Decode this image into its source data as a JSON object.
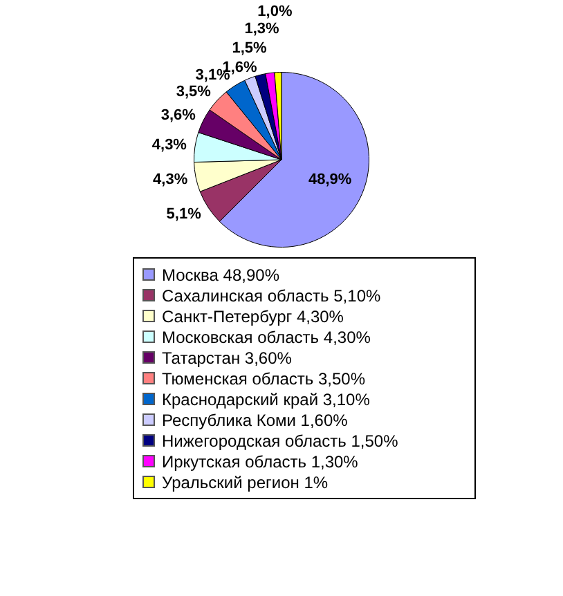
{
  "chart_data": {
    "type": "pie",
    "categories": [
      "Москва  48,90%",
      "Сахалинская область  5,10%",
      "Санкт-Петербург 4,30%",
      "Московская область  4,30%",
      "Татарстан  3,60%",
      "Тюменская область  3,50%",
      "Краснодарский край 3,10%",
      "Республика Коми  1,60%",
      "Нижегородская область  1,50%",
      "Иркутская область  1,30%",
      "Уральский регион 1%"
    ],
    "values": [
      48.9,
      5.1,
      4.3,
      4.3,
      3.6,
      3.5,
      3.1,
      1.6,
      1.5,
      1.3,
      1.0
    ],
    "value_labels": [
      "48,9%",
      "5,1%",
      "4,3%",
      "4,3%",
      "3,6%",
      "3,5%",
      "3,1%",
      "1,6%",
      "1,5%",
      "1,3%",
      "1,0%"
    ],
    "colors": [
      "#9999ff",
      "#993366",
      "#ffffcc",
      "#ccffff",
      "#660066",
      "#ff8080",
      "#0066cc",
      "#ccccff",
      "#000080",
      "#ff00ff",
      "#ffff00"
    ],
    "legend": "bottom"
  }
}
